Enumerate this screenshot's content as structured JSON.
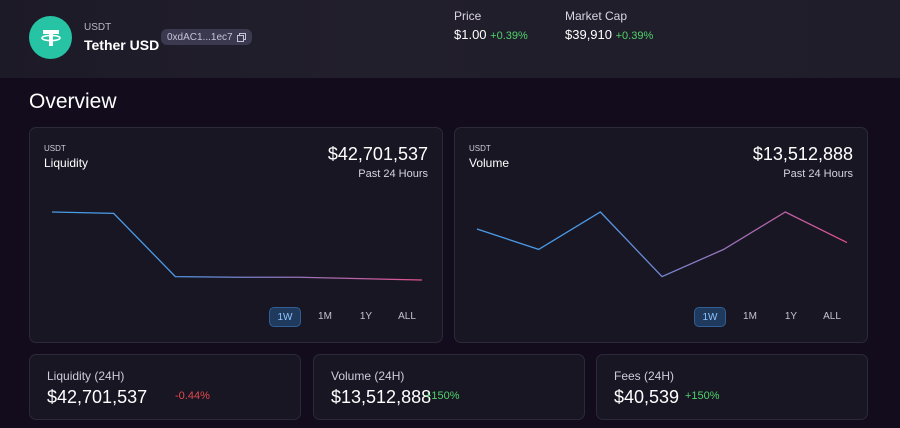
{
  "token": {
    "symbol": "USDT",
    "name": "Tether USD",
    "address": "0xdAC1...1ec7",
    "logo_icon": "tether-logo",
    "brand_color": "#26c3a5"
  },
  "header_stats": {
    "price_label": "Price",
    "price_value": "$1.00",
    "price_change": "+0.39%",
    "mcap_label": "Market Cap",
    "mcap_value": "$39,910",
    "mcap_change": "+0.39%"
  },
  "overview": {
    "title": "Overview"
  },
  "cards": [
    {
      "symbol": "USDT",
      "title": "Liquidity",
      "value": "$42,701,537",
      "period": "Past 24 Hours",
      "ranges": [
        "1W",
        "1M",
        "1Y",
        "ALL"
      ],
      "active_range": "1W"
    },
    {
      "symbol": "USDT",
      "title": "Volume",
      "value": "$13,512,888",
      "period": "Past 24 Hours",
      "ranges": [
        "1W",
        "1M",
        "1Y",
        "ALL"
      ],
      "active_range": "1W"
    }
  ],
  "chart_data": [
    {
      "type": "line",
      "values": [
        1.0,
        0.98,
        0.05,
        0.04,
        0.04,
        0.02,
        0.0
      ],
      "gradient": [
        "#4a9be8",
        "#e0508f"
      ]
    },
    {
      "type": "line",
      "values": [
        0.75,
        0.45,
        1.0,
        0.05,
        0.45,
        1.0,
        0.55
      ],
      "gradient": [
        "#4a9be8",
        "#e0508f"
      ]
    }
  ],
  "summary": [
    {
      "label": "Liquidity (24H)",
      "value": "$42,701,537",
      "change": "-0.44%",
      "direction": "neg"
    },
    {
      "label": "Volume (24H)",
      "value": "$13,512,888",
      "change": "+150%",
      "direction": "pos"
    },
    {
      "label": "Fees (24H)",
      "value": "$40,539",
      "change": "+150%",
      "direction": "pos"
    }
  ],
  "colors": {
    "positive": "#4fd36a",
    "negative": "#e5484d",
    "active_range": "#8ec2ff"
  }
}
